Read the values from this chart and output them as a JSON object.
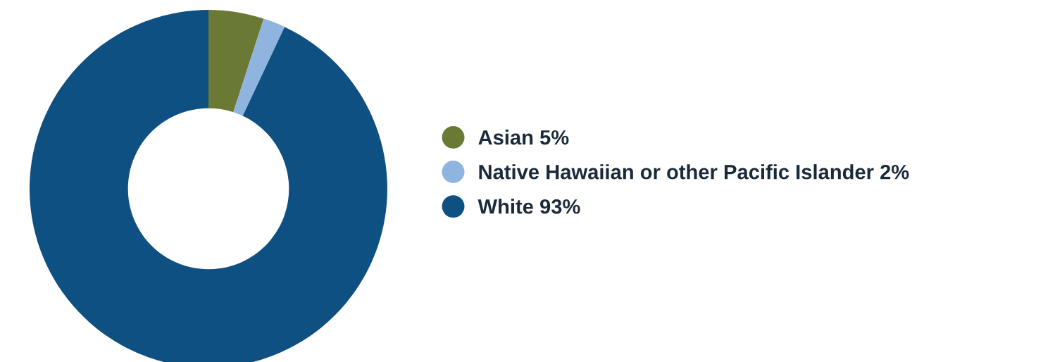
{
  "chart_data": {
    "type": "donut",
    "categories": [
      "Asian",
      "Native Hawaiian or other Pacific Islander",
      "White"
    ],
    "values": [
      5,
      2,
      93
    ],
    "value_labels": [
      "5%",
      "2%",
      "93%"
    ],
    "colors": [
      "#6a7a35",
      "#8fb4e0",
      "#0f5082"
    ],
    "legend": "right"
  }
}
